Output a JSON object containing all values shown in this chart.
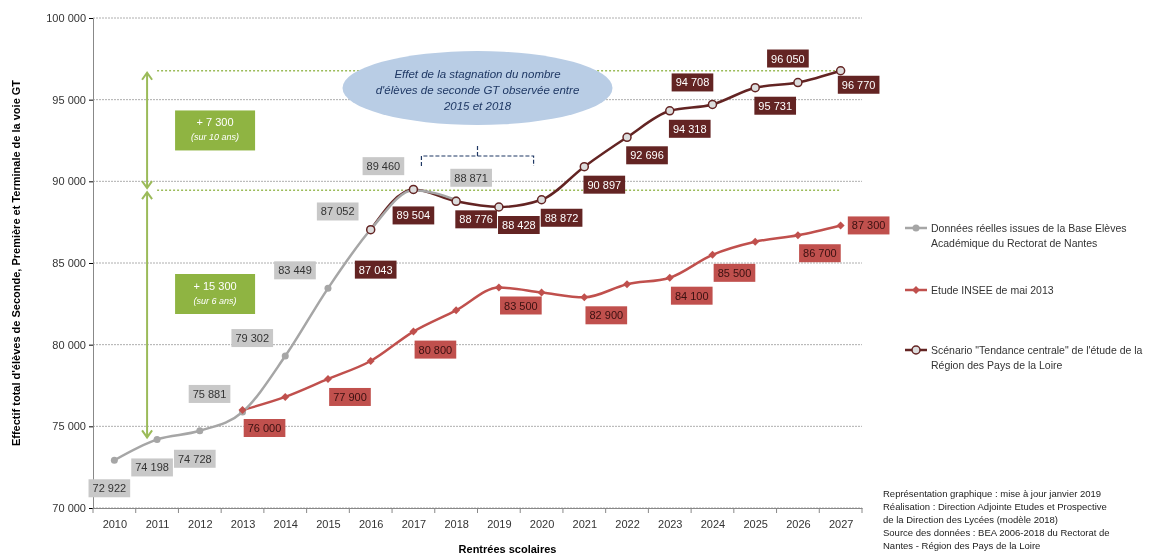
{
  "chart_data": {
    "type": "line",
    "xlabel": "Rentrées scolaires",
    "ylabel": "Effectif total d'élèves de Seconde, Première et Terminale de la voie GT",
    "categories": [
      "2010",
      "2011",
      "2012",
      "2013",
      "2014",
      "2015",
      "2016",
      "2017",
      "2018",
      "2019",
      "2020",
      "2021",
      "2022",
      "2023",
      "2024",
      "2025",
      "2026",
      "2027"
    ],
    "ylim": [
      70000,
      100000
    ],
    "yticks": [
      {
        "value": 70000,
        "label": "70 000"
      },
      {
        "value": 75000,
        "label": "75 000"
      },
      {
        "value": 80000,
        "label": "80 000"
      },
      {
        "value": 85000,
        "label": "85 000"
      },
      {
        "value": 90000,
        "label": "90 000"
      },
      {
        "value": 95000,
        "label": "95 000"
      },
      {
        "value": 100000,
        "label": "100 000"
      }
    ],
    "grid": "y",
    "legend": "right",
    "series": [
      {
        "name": "Données réelles issues de la Base Elèves Académique du Rectorat de Nantes",
        "color": "#a6a6a6",
        "marker": "circle",
        "values": [
          72922,
          74198,
          74728,
          75881,
          79302,
          83449,
          87052,
          89460,
          88871,
          null,
          null,
          null,
          null,
          null,
          null,
          null,
          null,
          null
        ],
        "value_labels": [
          "72 922",
          "74 198",
          "74 728",
          "75 881",
          "79 302",
          "83 449",
          "87 052",
          "89 460",
          "88 871",
          null,
          null,
          null,
          null,
          null,
          null,
          null,
          null,
          null
        ]
      },
      {
        "name": "Etude INSEE de mai 2013",
        "color": "#c0504d",
        "marker": "diamond",
        "values": [
          null,
          null,
          null,
          76000,
          76800,
          77900,
          79000,
          80800,
          82100,
          83500,
          83200,
          82900,
          83700,
          84100,
          85500,
          86300,
          86700,
          87300
        ],
        "value_labels": [
          null,
          null,
          null,
          "76 000",
          null,
          "77 900",
          null,
          "80 800",
          null,
          "83 500",
          null,
          "82 900",
          null,
          "84 100",
          "85 500",
          null,
          "86 700",
          "87 300"
        ]
      },
      {
        "name": "Scénario \"Tendance centrale\" de l'étude de la Région des Pays de la Loire",
        "color": "#632423",
        "marker": "open-circle",
        "values": [
          null,
          null,
          null,
          null,
          null,
          null,
          87043,
          89504,
          88776,
          88428,
          88872,
          90897,
          92696,
          94318,
          94708,
          95731,
          96050,
          96770
        ],
        "value_labels": [
          null,
          null,
          null,
          null,
          null,
          null,
          "87 043",
          "89 504",
          "88 776",
          "88 428",
          "88 872",
          "90 897",
          "92 696",
          "94 318",
          "94 708",
          "95 731",
          "96 050",
          "96 770"
        ]
      }
    ],
    "ref_lines": [
      {
        "axis": "y",
        "value": 96770,
        "color": "#9bbb59",
        "line_style": "dotted"
      },
      {
        "axis": "y",
        "value": 89460,
        "color": "#9bbb59",
        "line_style": "dotted"
      }
    ],
    "annotations": [
      "+ 7 300\n(sur 10 ans)",
      "+ 15 300\n(sur 6 ans)",
      "Effet de la stagnation du nombre\nd'élèves de seconde GT observée entre\n2015 et 2018",
      "Représentation graphique : mise à jour janvier 2019\nRéalisation : Direction Adjointe Etudes et Prospective\nde la Direction des Lycées (modèle 2018)\nSource des données : BEA 2006-2018 du Rectorat de\nNantes - Région des Pays de la Loire"
    ]
  }
}
